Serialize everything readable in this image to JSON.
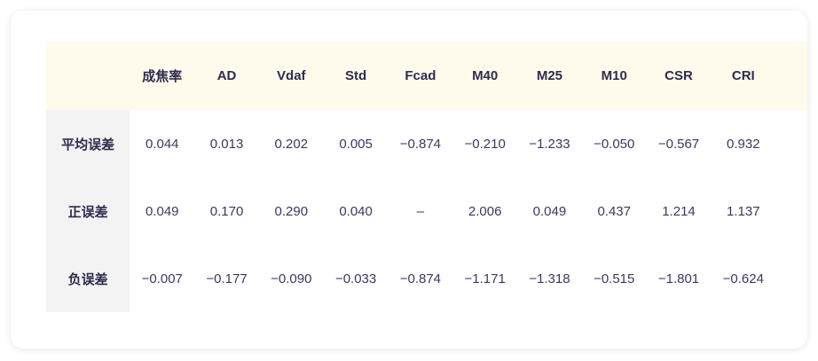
{
  "table": {
    "columns": [
      "成焦率",
      "AD",
      "Vdaf",
      "Std",
      "Fcad",
      "M40",
      "M25",
      "M10",
      "CSR",
      "CRI"
    ],
    "rows": [
      {
        "label": "平均误差",
        "values": [
          "0.044",
          "0.013",
          "0.202",
          "0.005",
          "−0.874",
          "−0.210",
          "−1.233",
          "−0.050",
          "−0.567",
          "0.932"
        ]
      },
      {
        "label": "正误差",
        "values": [
          "0.049",
          "0.170",
          "0.290",
          "0.040",
          "–",
          "2.006",
          "0.049",
          "0.437",
          "1.214",
          "1.137"
        ]
      },
      {
        "label": "负误差",
        "values": [
          "−0.007",
          "−0.177",
          "−0.090",
          "−0.033",
          "−0.874",
          "−1.171",
          "−1.318",
          "−0.515",
          "−1.801",
          "−0.624"
        ]
      }
    ]
  },
  "colors": {
    "header_bg": "#fefbec",
    "label_bg": "#f3f3f3",
    "text": "#2e2c4f"
  }
}
